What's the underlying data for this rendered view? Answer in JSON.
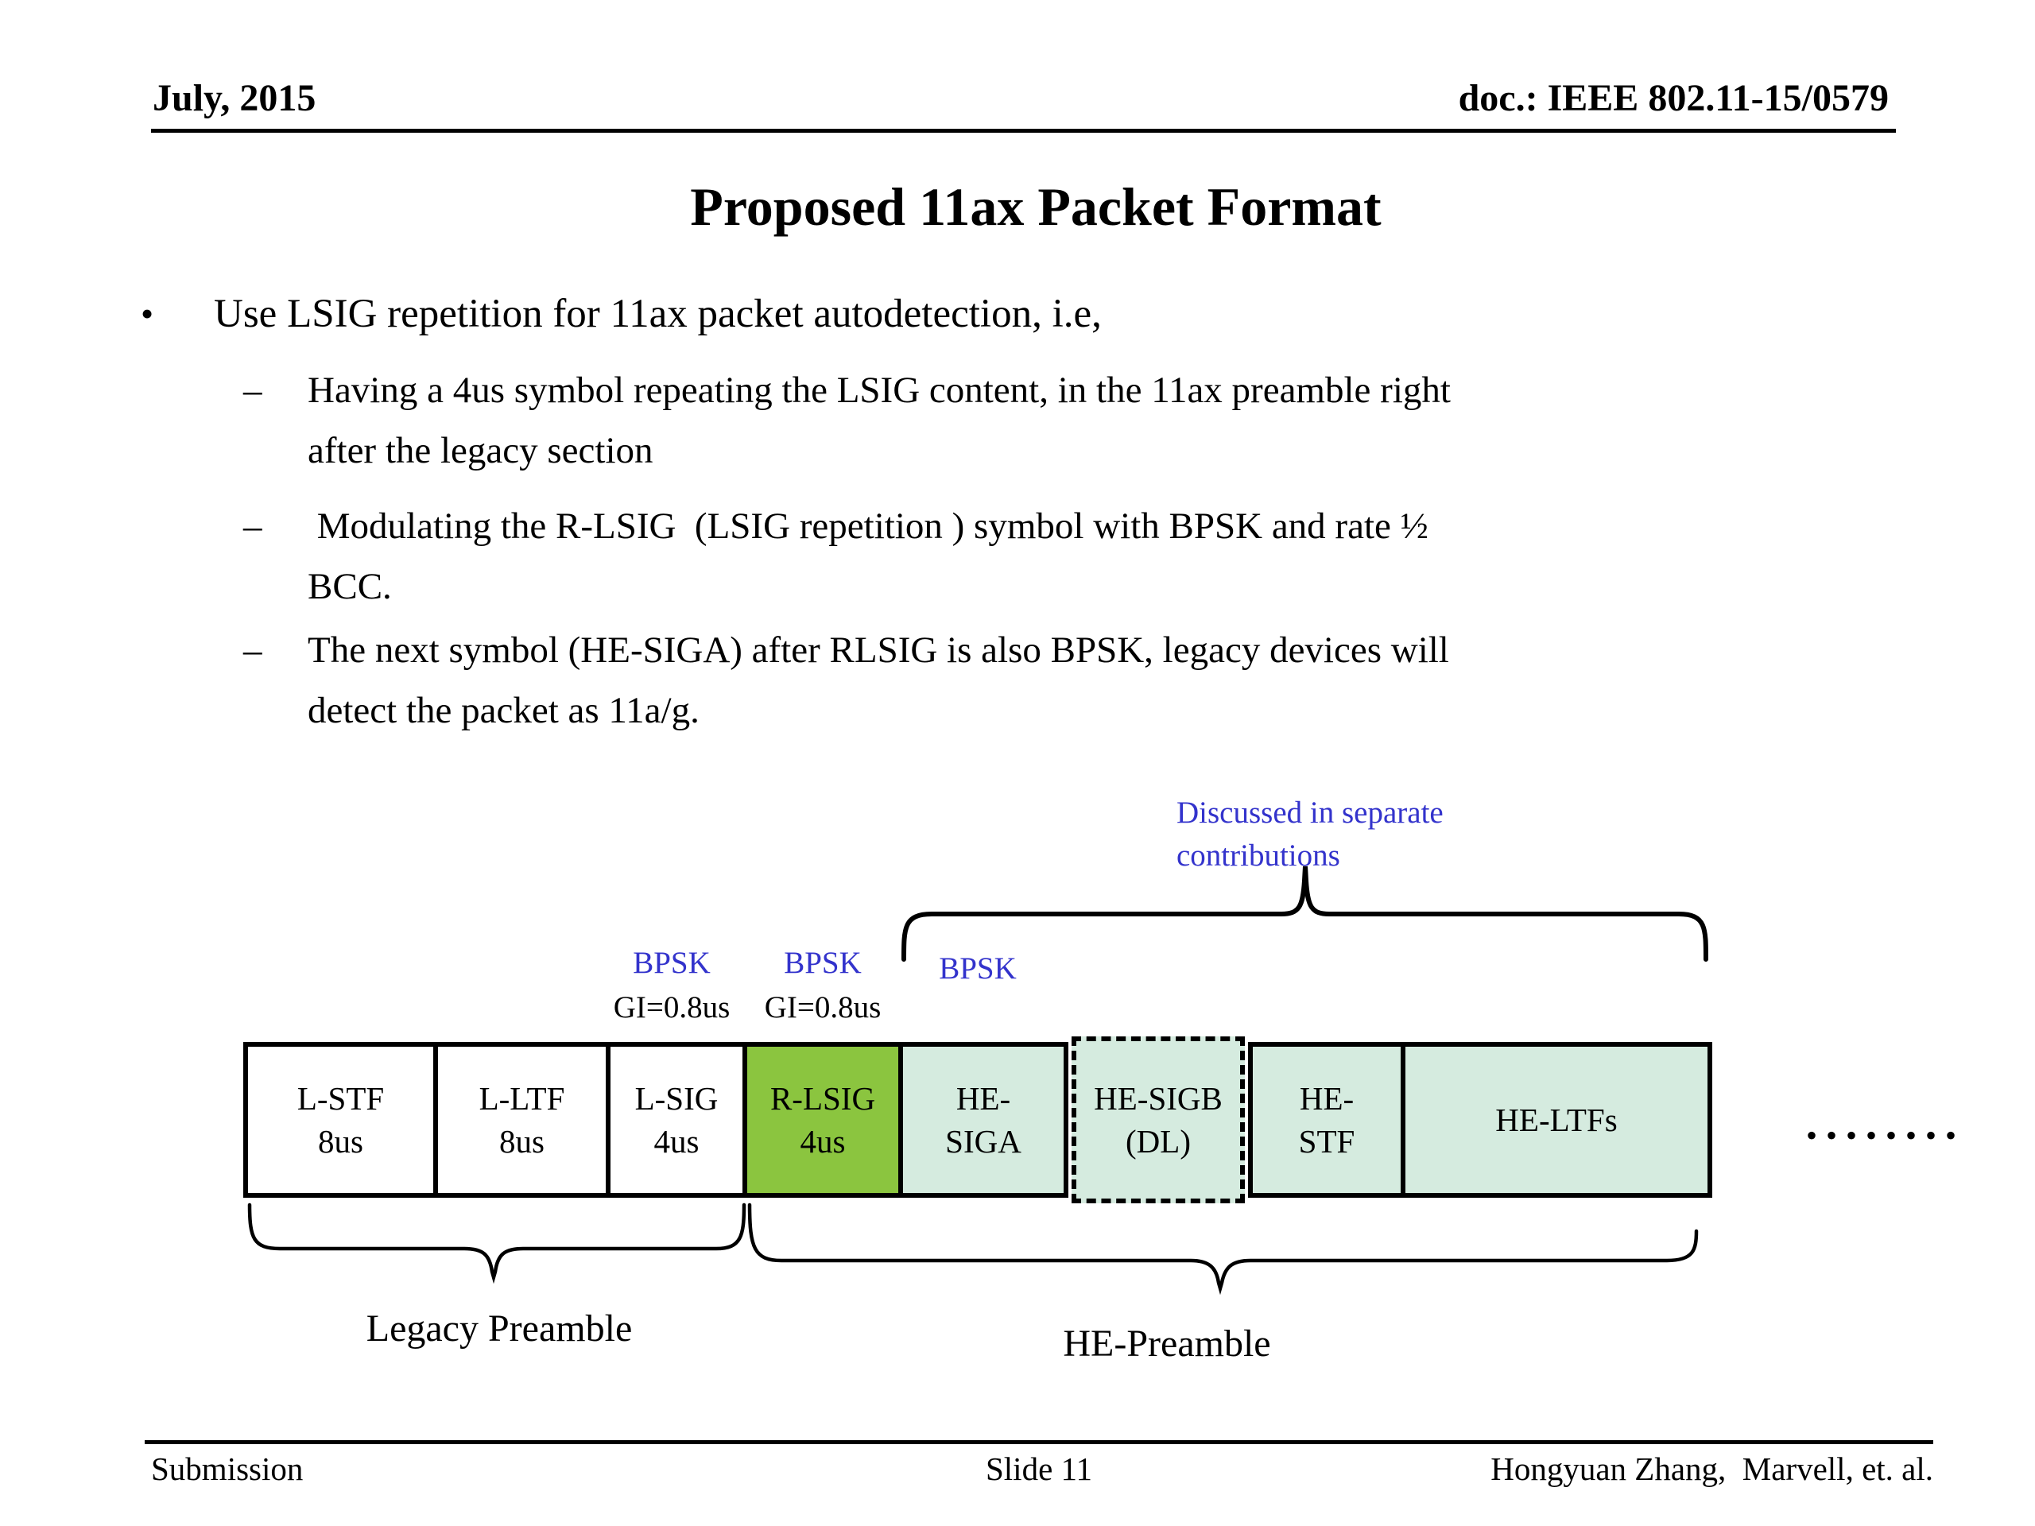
{
  "header": {
    "date": "July, 2015",
    "doc": "doc.: IEEE 802.11-15/0579"
  },
  "title": "Proposed 11ax Packet Format",
  "bullets": {
    "bullet_marker": "•",
    "dash_marker": "–",
    "main": "Use LSIG repetition for 11ax packet autodetection, i.e,",
    "subs": [
      {
        "lines": [
          "Having a 4us symbol repeating the LSIG content, in the 11ax preamble right",
          "after the legacy section"
        ]
      },
      {
        "lines": [
          " Modulating the R-LSIG  (LSIG repetition ) symbol with BPSK and rate ½",
          "BCC."
        ]
      },
      {
        "lines": [
          "The next symbol (HE-SIGA) after RLSIG is also BPSK, legacy devices will",
          "detect the packet as 11a/g."
        ]
      }
    ]
  },
  "diagram": {
    "annotation": {
      "lines": [
        "Discussed in separate",
        "contributions"
      ],
      "color": "#3333cc"
    },
    "modulation_labels": [
      {
        "bpsk": "BPSK",
        "gi": "GI=0.8us"
      },
      {
        "bpsk": "BPSK",
        "gi": "GI=0.8us"
      },
      {
        "bpsk": "BPSK"
      }
    ],
    "blocks": [
      {
        "id": "l-stf",
        "lines": [
          "L-STF",
          "8us"
        ],
        "fill": "#ffffff",
        "border": "solid"
      },
      {
        "id": "l-ltf",
        "lines": [
          "L-LTF",
          "8us"
        ],
        "fill": "#ffffff",
        "border": "solid"
      },
      {
        "id": "l-sig",
        "lines": [
          "L-SIG",
          "4us"
        ],
        "fill": "#ffffff",
        "border": "solid"
      },
      {
        "id": "r-lsig",
        "lines": [
          "R-LSIG",
          "4us"
        ],
        "fill": "#8bc53f",
        "border": "solid"
      },
      {
        "id": "he-siga",
        "lines": [
          "HE-",
          "SIGA"
        ],
        "fill": "#d5ebdf",
        "border": "solid"
      },
      {
        "id": "he-sigb",
        "lines": [
          "HE-SIGB",
          "(DL)"
        ],
        "fill": "#d5ebdf",
        "border": "dashed"
      },
      {
        "id": "he-stf",
        "lines": [
          "HE-",
          "STF"
        ],
        "fill": "#d5ebdf",
        "border": "solid"
      },
      {
        "id": "he-ltfs",
        "lines": [
          "HE-LTFs"
        ],
        "fill": "#d5ebdf",
        "border": "solid"
      }
    ],
    "continuation_dots": "••••••••",
    "legacy_preamble_label": "Legacy Preamble",
    "he_preamble_label": "HE-Preamble",
    "colors": {
      "annotation_blue": "#3333cc",
      "rlsig_green": "#8bc53f",
      "he_teal": "#d5ebdf"
    }
  },
  "footer": {
    "left": "Submission",
    "center": "Slide 11",
    "right": "Hongyuan Zhang,  Marvell, et. al."
  }
}
